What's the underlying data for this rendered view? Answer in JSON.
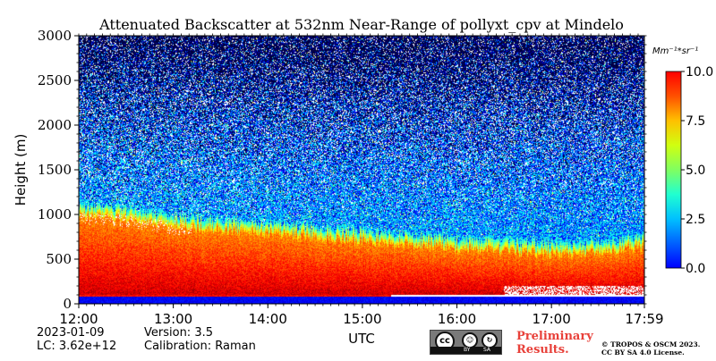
{
  "chart_data": {
    "type": "heatmap",
    "title": "Attenuated Backscatter at 532nm Near-Range of pollyxt_cpv at Mindelo",
    "xlabel": "UTC",
    "ylabel": "Height (m)",
    "x_tick_labels": [
      "12:00",
      "13:00",
      "14:00",
      "15:00",
      "16:00",
      "17:00",
      "17:59"
    ],
    "x_range_hours": [
      12.0,
      17.983
    ],
    "y_ticks": [
      0,
      500,
      1000,
      1500,
      2000,
      2500,
      3000
    ],
    "ylim": [
      0,
      3000
    ],
    "colorbar": {
      "label": "Mm⁻¹*sr⁻¹",
      "ticks": [
        "0.0",
        "2.5",
        "5.0",
        "7.5",
        "10.0"
      ],
      "range": [
        0,
        10
      ],
      "colormap": "jet"
    },
    "layers": {
      "surface_blue_band_top_m": 80,
      "noise_free_gap_top_m": 100,
      "boundary_layer_top_m": [
        {
          "time": 12.0,
          "height": 1000
        },
        {
          "time": 12.5,
          "height": 950
        },
        {
          "time": 13.0,
          "height": 880
        },
        {
          "time": 13.5,
          "height": 820
        },
        {
          "time": 14.0,
          "height": 790
        },
        {
          "time": 14.5,
          "height": 750
        },
        {
          "time": 15.0,
          "height": 700
        },
        {
          "time": 15.5,
          "height": 660
        },
        {
          "time": 16.0,
          "height": 620
        },
        {
          "time": 16.5,
          "height": 580
        },
        {
          "time": 17.0,
          "height": 560
        },
        {
          "time": 17.5,
          "height": 570
        },
        {
          "time": 17.983,
          "height": 650
        }
      ]
    }
  },
  "info": {
    "date": "2023-01-09",
    "lc": "LC: 3.62e+12",
    "version": "Version: 3.5",
    "calibration": "Calibration: Raman"
  },
  "license": {
    "badge_cc": "cc",
    "badge_by": "BY",
    "badge_sa": "SA",
    "preliminary_line1": "Preliminary",
    "preliminary_line2": "Results.",
    "copyright_line1": "© TROPOS & OSCM 2023.",
    "copyright_line2": "CC BY SA 4.0 License."
  }
}
